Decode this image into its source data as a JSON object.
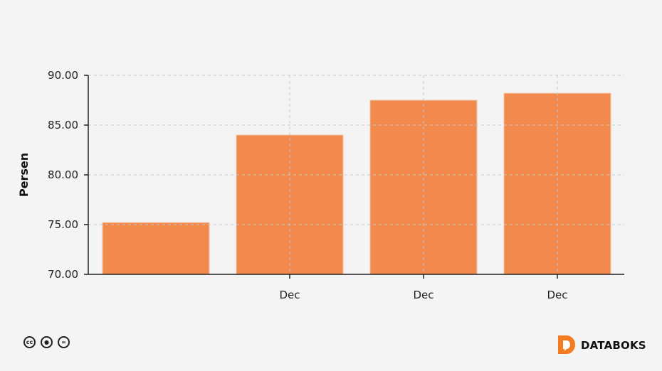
{
  "chart_data": {
    "type": "bar",
    "categories": [
      "",
      "Dec",
      "Dec",
      "Dec"
    ],
    "values": [
      75.2,
      84.0,
      87.5,
      88.2
    ],
    "title": "",
    "xlabel": "",
    "ylabel": "Persen",
    "ylim": [
      70,
      90
    ],
    "yticks": [
      "70.00",
      "75.00",
      "80.00",
      "85.00",
      "90.00"
    ],
    "grid": true,
    "bar_color": "#f28a4d"
  },
  "footer": {
    "license_icons": [
      "cc-icon",
      "by-icon",
      "nd-icon"
    ],
    "brand": "DATABOKS",
    "brand_color": "#f47b20"
  }
}
